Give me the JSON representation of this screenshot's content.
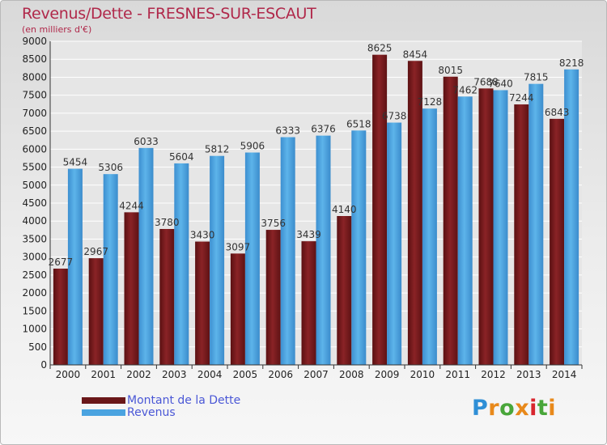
{
  "title": "Revenus/Dette - FRESNES-SUR-ESCAUT",
  "subtitle": "(en milliers d'€)",
  "logo_text": "Proxiti",
  "colors": {
    "dette": "#7a1a1d",
    "revenus": "#4aa3e0",
    "title": "#b0284a",
    "legend": "#4a57d6"
  },
  "chart_data": {
    "type": "bar",
    "categories": [
      "2000",
      "2001",
      "2002",
      "2003",
      "2004",
      "2005",
      "2006",
      "2007",
      "2008",
      "2009",
      "2010",
      "2011",
      "2012",
      "2013",
      "2014"
    ],
    "series": [
      {
        "name": "Montant de la Dette",
        "values": [
          2677,
          2967,
          4244,
          3780,
          3430,
          3097,
          3756,
          3439,
          4140,
          8625,
          8454,
          8015,
          7688,
          7244,
          6843
        ]
      },
      {
        "name": "Revenus",
        "values": [
          5454,
          5306,
          6033,
          5604,
          5812,
          5906,
          6333,
          6376,
          6518,
          6738,
          7128,
          7462,
          7640,
          7815,
          8218
        ]
      }
    ],
    "ylim": [
      0,
      9000
    ],
    "yticks": [
      0,
      500,
      1000,
      1500,
      2000,
      2500,
      3000,
      3500,
      4000,
      4500,
      5000,
      5500,
      6000,
      6500,
      7000,
      7500,
      8000,
      8500,
      9000
    ],
    "grid": true,
    "legend": "bottom-left"
  }
}
